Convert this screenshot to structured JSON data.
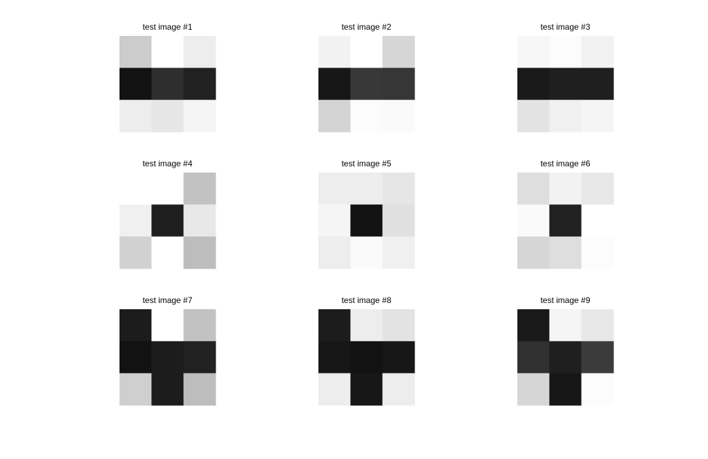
{
  "figure": {
    "background": "#ffffff"
  },
  "chart_data": [
    {
      "type": "heatmap",
      "title": "test image #1",
      "colormap": "gray",
      "values": [
        [
          0.8,
          1.0,
          0.93
        ],
        [
          0.07,
          0.18,
          0.13
        ],
        [
          0.93,
          0.9,
          0.96
        ]
      ]
    },
    {
      "type": "heatmap",
      "title": "test image #2",
      "colormap": "gray",
      "values": [
        [
          0.95,
          1.0,
          0.84
        ],
        [
          0.09,
          0.22,
          0.21
        ],
        [
          0.83,
          0.99,
          0.98
        ]
      ]
    },
    {
      "type": "heatmap",
      "title": "test image #3",
      "colormap": "gray",
      "values": [
        [
          0.97,
          0.99,
          0.95
        ],
        [
          0.1,
          0.12,
          0.12
        ],
        [
          0.89,
          0.94,
          0.96
        ]
      ]
    },
    {
      "type": "heatmap",
      "title": "test image #4",
      "colormap": "gray",
      "values": [
        [
          1.0,
          1.0,
          0.76
        ],
        [
          0.94,
          0.12,
          0.91
        ],
        [
          0.82,
          1.0,
          0.74
        ]
      ]
    },
    {
      "type": "heatmap",
      "title": "test image #5",
      "colormap": "gray",
      "values": [
        [
          0.93,
          0.93,
          0.9
        ],
        [
          0.96,
          0.07,
          0.88
        ],
        [
          0.93,
          0.98,
          0.94
        ]
      ]
    },
    {
      "type": "heatmap",
      "title": "test image #6",
      "colormap": "gray",
      "values": [
        [
          0.87,
          0.95,
          0.91
        ],
        [
          0.98,
          0.13,
          1.0
        ],
        [
          0.84,
          0.87,
          0.99
        ]
      ]
    },
    {
      "type": "heatmap",
      "title": "test image #7",
      "colormap": "gray",
      "values": [
        [
          0.11,
          1.0,
          0.76
        ],
        [
          0.07,
          0.11,
          0.13
        ],
        [
          0.81,
          0.11,
          0.74
        ]
      ]
    },
    {
      "type": "heatmap",
      "title": "test image #8",
      "colormap": "gray",
      "values": [
        [
          0.11,
          0.93,
          0.89
        ],
        [
          0.09,
          0.07,
          0.09
        ],
        [
          0.93,
          0.09,
          0.93
        ]
      ]
    },
    {
      "type": "heatmap",
      "title": "test image #9",
      "colormap": "gray",
      "values": [
        [
          0.1,
          0.96,
          0.91
        ],
        [
          0.19,
          0.12,
          0.23
        ],
        [
          0.84,
          0.09,
          0.99
        ]
      ]
    }
  ]
}
